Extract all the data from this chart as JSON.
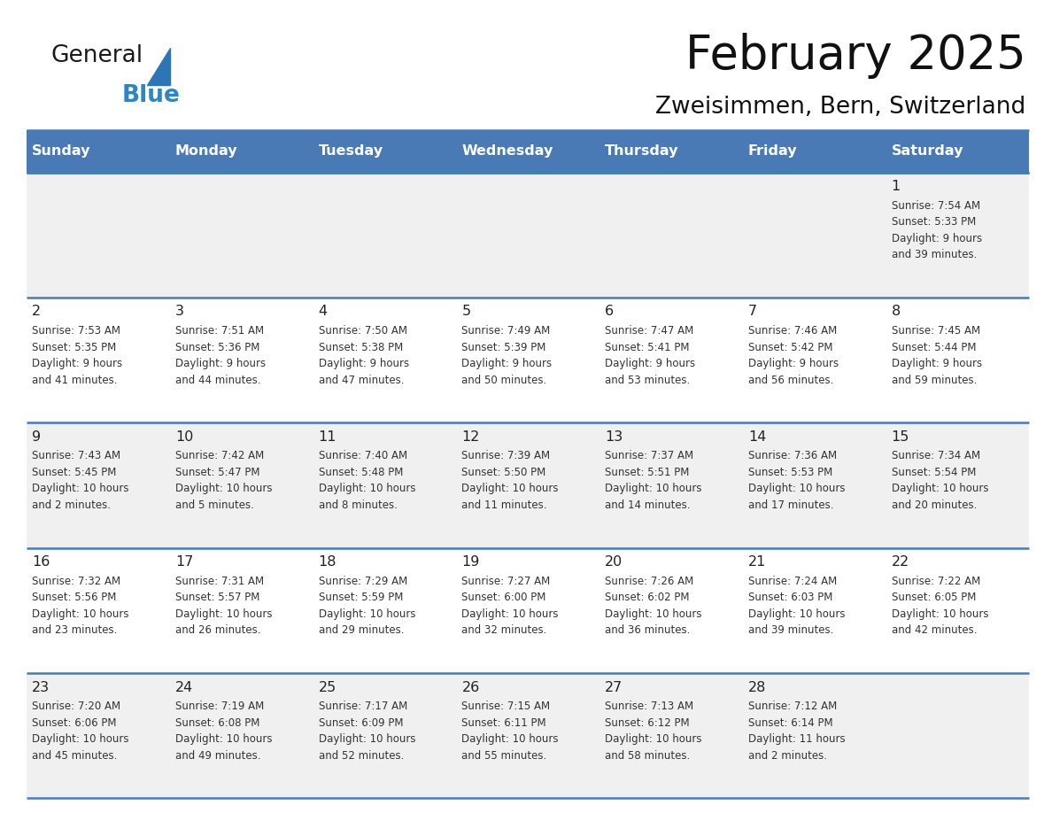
{
  "title": "February 2025",
  "subtitle": "Zweisimmen, Bern, Switzerland",
  "header_bg_color": "#4a7ab5",
  "header_text_color": "#ffffff",
  "header_days": [
    "Sunday",
    "Monday",
    "Tuesday",
    "Wednesday",
    "Thursday",
    "Friday",
    "Saturday"
  ],
  "row_bg_colors": [
    "#f0f0f0",
    "#ffffff",
    "#f0f0f0",
    "#ffffff",
    "#f0f0f0"
  ],
  "cell_border_color": "#4a7ab5",
  "day_number_color": "#222222",
  "info_text_color": "#333333",
  "logo_general_color": "#1a1a1a",
  "logo_blue_color": "#2e86c1",
  "logo_triangle_color": "#2e75b6",
  "calendar": [
    [
      {
        "day": null,
        "info": ""
      },
      {
        "day": null,
        "info": ""
      },
      {
        "day": null,
        "info": ""
      },
      {
        "day": null,
        "info": ""
      },
      {
        "day": null,
        "info": ""
      },
      {
        "day": null,
        "info": ""
      },
      {
        "day": 1,
        "info": "Sunrise: 7:54 AM\nSunset: 5:33 PM\nDaylight: 9 hours\nand 39 minutes."
      }
    ],
    [
      {
        "day": 2,
        "info": "Sunrise: 7:53 AM\nSunset: 5:35 PM\nDaylight: 9 hours\nand 41 minutes."
      },
      {
        "day": 3,
        "info": "Sunrise: 7:51 AM\nSunset: 5:36 PM\nDaylight: 9 hours\nand 44 minutes."
      },
      {
        "day": 4,
        "info": "Sunrise: 7:50 AM\nSunset: 5:38 PM\nDaylight: 9 hours\nand 47 minutes."
      },
      {
        "day": 5,
        "info": "Sunrise: 7:49 AM\nSunset: 5:39 PM\nDaylight: 9 hours\nand 50 minutes."
      },
      {
        "day": 6,
        "info": "Sunrise: 7:47 AM\nSunset: 5:41 PM\nDaylight: 9 hours\nand 53 minutes."
      },
      {
        "day": 7,
        "info": "Sunrise: 7:46 AM\nSunset: 5:42 PM\nDaylight: 9 hours\nand 56 minutes."
      },
      {
        "day": 8,
        "info": "Sunrise: 7:45 AM\nSunset: 5:44 PM\nDaylight: 9 hours\nand 59 minutes."
      }
    ],
    [
      {
        "day": 9,
        "info": "Sunrise: 7:43 AM\nSunset: 5:45 PM\nDaylight: 10 hours\nand 2 minutes."
      },
      {
        "day": 10,
        "info": "Sunrise: 7:42 AM\nSunset: 5:47 PM\nDaylight: 10 hours\nand 5 minutes."
      },
      {
        "day": 11,
        "info": "Sunrise: 7:40 AM\nSunset: 5:48 PM\nDaylight: 10 hours\nand 8 minutes."
      },
      {
        "day": 12,
        "info": "Sunrise: 7:39 AM\nSunset: 5:50 PM\nDaylight: 10 hours\nand 11 minutes."
      },
      {
        "day": 13,
        "info": "Sunrise: 7:37 AM\nSunset: 5:51 PM\nDaylight: 10 hours\nand 14 minutes."
      },
      {
        "day": 14,
        "info": "Sunrise: 7:36 AM\nSunset: 5:53 PM\nDaylight: 10 hours\nand 17 minutes."
      },
      {
        "day": 15,
        "info": "Sunrise: 7:34 AM\nSunset: 5:54 PM\nDaylight: 10 hours\nand 20 minutes."
      }
    ],
    [
      {
        "day": 16,
        "info": "Sunrise: 7:32 AM\nSunset: 5:56 PM\nDaylight: 10 hours\nand 23 minutes."
      },
      {
        "day": 17,
        "info": "Sunrise: 7:31 AM\nSunset: 5:57 PM\nDaylight: 10 hours\nand 26 minutes."
      },
      {
        "day": 18,
        "info": "Sunrise: 7:29 AM\nSunset: 5:59 PM\nDaylight: 10 hours\nand 29 minutes."
      },
      {
        "day": 19,
        "info": "Sunrise: 7:27 AM\nSunset: 6:00 PM\nDaylight: 10 hours\nand 32 minutes."
      },
      {
        "day": 20,
        "info": "Sunrise: 7:26 AM\nSunset: 6:02 PM\nDaylight: 10 hours\nand 36 minutes."
      },
      {
        "day": 21,
        "info": "Sunrise: 7:24 AM\nSunset: 6:03 PM\nDaylight: 10 hours\nand 39 minutes."
      },
      {
        "day": 22,
        "info": "Sunrise: 7:22 AM\nSunset: 6:05 PM\nDaylight: 10 hours\nand 42 minutes."
      }
    ],
    [
      {
        "day": 23,
        "info": "Sunrise: 7:20 AM\nSunset: 6:06 PM\nDaylight: 10 hours\nand 45 minutes."
      },
      {
        "day": 24,
        "info": "Sunrise: 7:19 AM\nSunset: 6:08 PM\nDaylight: 10 hours\nand 49 minutes."
      },
      {
        "day": 25,
        "info": "Sunrise: 7:17 AM\nSunset: 6:09 PM\nDaylight: 10 hours\nand 52 minutes."
      },
      {
        "day": 26,
        "info": "Sunrise: 7:15 AM\nSunset: 6:11 PM\nDaylight: 10 hours\nand 55 minutes."
      },
      {
        "day": 27,
        "info": "Sunrise: 7:13 AM\nSunset: 6:12 PM\nDaylight: 10 hours\nand 58 minutes."
      },
      {
        "day": 28,
        "info": "Sunrise: 7:12 AM\nSunset: 6:14 PM\nDaylight: 11 hours\nand 2 minutes."
      },
      {
        "day": null,
        "info": ""
      }
    ]
  ]
}
